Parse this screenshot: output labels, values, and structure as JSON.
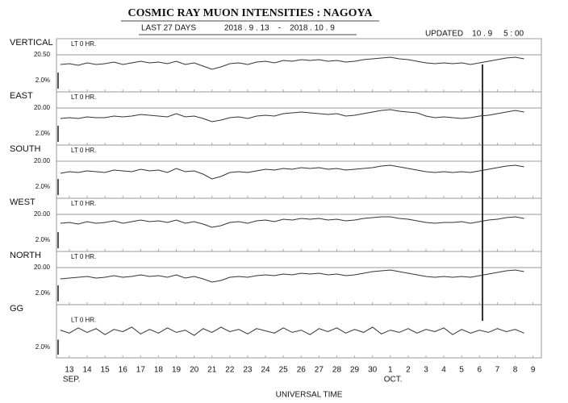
{
  "header": {
    "title": "COSMIC RAY MUON INTENSITIES  :  NAGOYA",
    "subtitle": "LAST 27 DAYS",
    "period": "2018 . 9 . 13    -    2018 . 10 . 9",
    "updated": "UPDATED    10 . 9     5 : 00"
  },
  "x_axis": {
    "label": "UNIVERSAL TIME",
    "xlim": [
      -0.72,
      26.47
    ],
    "x": [
      -0.5,
      0,
      0.5,
      1,
      1.5,
      2,
      2.5,
      3,
      3.5,
      4,
      4.5,
      5,
      5.5,
      6,
      6.5,
      7,
      7.5,
      8,
      8.5,
      9,
      9.5,
      10,
      10.5,
      11,
      11.5,
      12,
      12.5,
      13,
      13.5,
      14,
      14.5,
      15,
      15.5,
      16,
      16.5,
      17,
      17.5,
      18,
      18.5,
      19,
      19.5,
      20,
      20.5,
      21,
      21.5,
      22,
      22.5,
      23,
      23.5,
      24,
      24.5,
      25,
      25.5
    ],
    "xticks": [
      {
        "value": 0,
        "label": "13"
      },
      {
        "value": 1,
        "label": "14"
      },
      {
        "value": 2,
        "label": "15"
      },
      {
        "value": 3,
        "label": "16"
      },
      {
        "value": 4,
        "label": "17"
      },
      {
        "value": 5,
        "label": "18"
      },
      {
        "value": 6,
        "label": "19"
      },
      {
        "value": 7,
        "label": "20"
      },
      {
        "value": 8,
        "label": "21"
      },
      {
        "value": 9,
        "label": "22"
      },
      {
        "value": 10,
        "label": "23"
      },
      {
        "value": 11,
        "label": "24"
      },
      {
        "value": 12,
        "label": "25"
      },
      {
        "value": 13,
        "label": "26"
      },
      {
        "value": 14,
        "label": "27"
      },
      {
        "value": 15,
        "label": "28"
      },
      {
        "value": 16,
        "label": "29"
      },
      {
        "value": 17,
        "label": "30"
      },
      {
        "value": 18,
        "label": "1"
      },
      {
        "value": 19,
        "label": "2"
      },
      {
        "value": 20,
        "label": "3"
      },
      {
        "value": 21,
        "label": "4"
      },
      {
        "value": 22,
        "label": "5"
      },
      {
        "value": 23,
        "label": "6"
      },
      {
        "value": 24,
        "label": "7"
      },
      {
        "value": 25,
        "label": "8"
      },
      {
        "value": 26,
        "label": "9"
      }
    ],
    "month_labels": [
      {
        "value": 0,
        "label": "SEP."
      },
      {
        "value": 18,
        "label": "OCT."
      }
    ]
  },
  "chart_data": [
    {
      "type": "line",
      "title": "VERTICAL",
      "annotation": "LT 0 HR.",
      "color": "#333333",
      "ylim": [
        -4.6,
        2.0
      ],
      "yticks": [
        {
          "value": 0,
          "label": "20.50"
        }
      ],
      "scale_bar": {
        "value": 2.0,
        "label": "2.0%"
      },
      "values": [
        -1.2,
        -1.1,
        -1.3,
        -1.0,
        -1.2,
        -1.1,
        -0.9,
        -1.2,
        -1.0,
        -0.8,
        -1.0,
        -0.9,
        -1.1,
        -0.8,
        -1.2,
        -1.0,
        -1.4,
        -1.8,
        -1.5,
        -1.1,
        -1.0,
        -1.2,
        -0.9,
        -0.8,
        -1.0,
        -0.7,
        -0.8,
        -0.6,
        -0.7,
        -0.6,
        -0.8,
        -0.7,
        -0.9,
        -0.8,
        -0.6,
        -0.5,
        -0.4,
        -0.3,
        -0.5,
        -0.6,
        -0.8,
        -1.0,
        -1.1,
        -1.0,
        -1.1,
        -1.0,
        -1.2,
        -1.0,
        -0.8,
        -0.6,
        -0.4,
        -0.3,
        -0.5
      ]
    },
    {
      "type": "line",
      "title": "EAST",
      "annotation": "LT 0 HR.",
      "color": "#333333",
      "ylim": [
        -4.6,
        2.0
      ],
      "yticks": [
        {
          "value": 0,
          "label": "20.00"
        }
      ],
      "scale_bar": {
        "value": 2.0,
        "label": "2.0%"
      },
      "values": [
        -1.3,
        -1.2,
        -1.3,
        -1.1,
        -1.2,
        -1.2,
        -1.0,
        -1.1,
        -1.0,
        -0.8,
        -0.9,
        -1.0,
        -1.1,
        -0.7,
        -1.1,
        -1.0,
        -1.3,
        -1.7,
        -1.5,
        -1.2,
        -1.1,
        -1.3,
        -1.0,
        -0.9,
        -1.0,
        -0.7,
        -0.6,
        -0.5,
        -0.6,
        -0.7,
        -0.8,
        -0.7,
        -1.0,
        -0.9,
        -0.7,
        -0.5,
        -0.3,
        -0.2,
        -0.4,
        -0.5,
        -0.6,
        -1.0,
        -1.2,
        -1.1,
        -1.2,
        -1.3,
        -1.2,
        -1.0,
        -0.9,
        -0.7,
        -0.5,
        -0.3,
        -0.5
      ]
    },
    {
      "type": "line",
      "title": "SOUTH",
      "annotation": "LT 0 HR.",
      "color": "#333333",
      "ylim": [
        -4.6,
        2.0
      ],
      "yticks": [
        {
          "value": 0,
          "label": "20.00"
        }
      ],
      "scale_bar": {
        "value": 2.0,
        "label": "2.0%"
      },
      "values": [
        -1.5,
        -1.3,
        -1.4,
        -1.2,
        -1.3,
        -1.4,
        -1.1,
        -1.2,
        -1.3,
        -1.0,
        -1.2,
        -1.1,
        -1.4,
        -0.9,
        -1.3,
        -1.2,
        -1.6,
        -2.2,
        -1.9,
        -1.4,
        -1.3,
        -1.4,
        -1.2,
        -1.0,
        -1.1,
        -0.9,
        -1.0,
        -0.8,
        -0.9,
        -0.8,
        -1.0,
        -0.9,
        -1.1,
        -1.0,
        -0.9,
        -0.8,
        -0.6,
        -0.5,
        -0.7,
        -0.9,
        -1.1,
        -1.3,
        -1.4,
        -1.3,
        -1.4,
        -1.3,
        -1.4,
        -1.2,
        -1.0,
        -0.8,
        -0.6,
        -0.5,
        -0.7
      ]
    },
    {
      "type": "line",
      "title": "WEST",
      "annotation": "LT 0 HR.",
      "color": "#333333",
      "ylim": [
        -4.6,
        2.0
      ],
      "yticks": [
        {
          "value": 0,
          "label": "20.00"
        }
      ],
      "scale_bar": {
        "value": 2.0,
        "label": "2.0%"
      },
      "values": [
        -1.1,
        -1.0,
        -1.2,
        -0.9,
        -1.1,
        -1.0,
        -0.8,
        -1.1,
        -0.9,
        -0.7,
        -0.9,
        -0.8,
        -1.0,
        -0.7,
        -1.1,
        -0.9,
        -1.2,
        -1.6,
        -1.4,
        -1.0,
        -0.9,
        -1.1,
        -0.8,
        -0.7,
        -0.9,
        -0.6,
        -0.7,
        -0.5,
        -0.6,
        -0.5,
        -0.7,
        -0.6,
        -0.8,
        -0.7,
        -0.5,
        -0.4,
        -0.3,
        -0.3,
        -0.5,
        -0.6,
        -0.8,
        -1.0,
        -1.1,
        -1.0,
        -1.0,
        -0.9,
        -1.1,
        -0.9,
        -0.7,
        -0.6,
        -0.4,
        -0.3,
        -0.5
      ]
    },
    {
      "type": "line",
      "title": "NORTH",
      "annotation": "LT 0 HR.",
      "color": "#333333",
      "ylim": [
        -4.6,
        2.0
      ],
      "yticks": [
        {
          "value": 0,
          "label": "20.00"
        }
      ],
      "scale_bar": {
        "value": 2.0,
        "label": "2.0%"
      },
      "values": [
        -1.4,
        -1.3,
        -1.2,
        -1.1,
        -1.3,
        -1.2,
        -1.0,
        -1.2,
        -1.1,
        -0.9,
        -1.1,
        -1.0,
        -1.2,
        -0.9,
        -1.3,
        -1.1,
        -1.4,
        -1.8,
        -1.6,
        -1.2,
        -1.1,
        -1.2,
        -1.0,
        -0.9,
        -1.0,
        -0.8,
        -0.9,
        -0.7,
        -0.8,
        -0.7,
        -0.9,
        -0.8,
        -1.0,
        -0.9,
        -0.7,
        -0.5,
        -0.4,
        -0.3,
        -0.5,
        -0.7,
        -0.9,
        -1.1,
        -1.2,
        -1.1,
        -1.2,
        -1.1,
        -1.2,
        -1.0,
        -0.8,
        -0.6,
        -0.4,
        -0.3,
        -0.5
      ]
    },
    {
      "type": "line",
      "title": "GG",
      "annotation": "LT 0 HR.",
      "color": "#333333",
      "ylim": [
        -3.6,
        3.5
      ],
      "yticks": [],
      "scale_bar": {
        "value": 2.0,
        "label": "2.0%"
      },
      "values": [
        0.1,
        -0.3,
        0.4,
        -0.2,
        0.3,
        -0.5,
        0.2,
        -0.1,
        0.5,
        -0.4,
        0.2,
        -0.3,
        0.4,
        -0.2,
        0.1,
        -0.6,
        0.3,
        -0.2,
        0.5,
        -0.1,
        0.2,
        -0.4,
        0.3,
        0.0,
        -0.3,
        0.4,
        -0.2,
        0.1,
        -0.5,
        0.3,
        -0.1,
        0.4,
        -0.3,
        0.2,
        -0.2,
        0.5,
        -0.4,
        0.1,
        -0.2,
        0.3,
        -0.3,
        0.2,
        -0.1,
        0.4,
        -0.5,
        0.2,
        -0.3,
        0.1,
        -0.2,
        0.3,
        -0.1,
        0.2,
        -0.3
      ]
    }
  ]
}
